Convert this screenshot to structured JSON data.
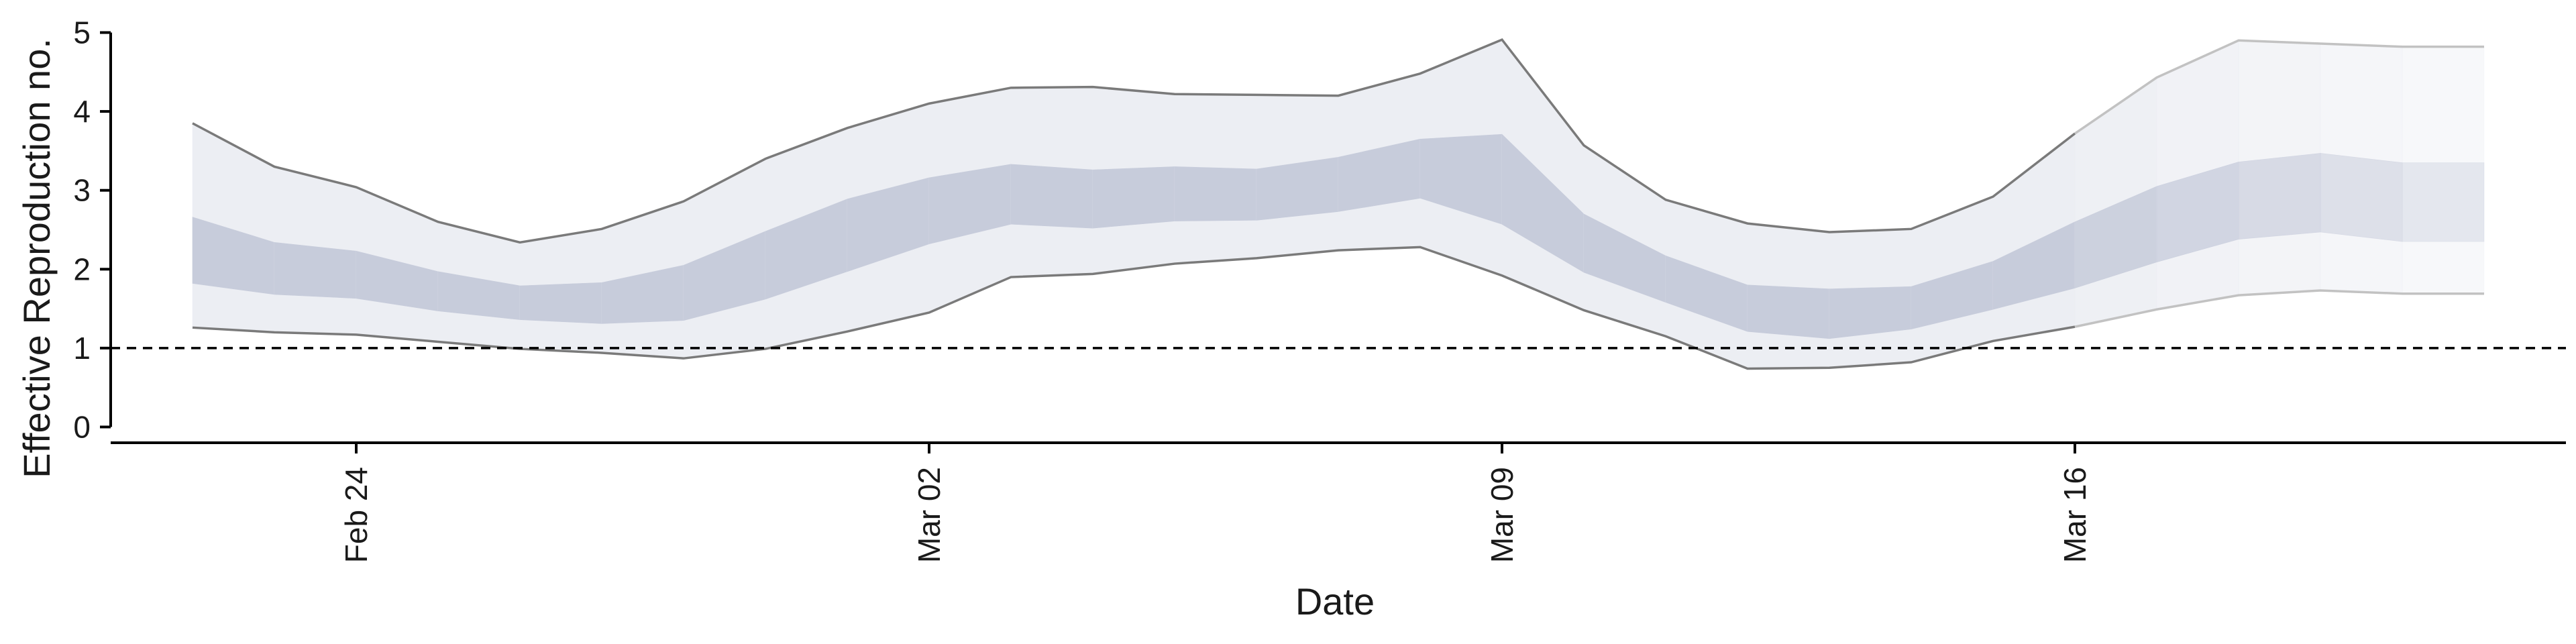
{
  "chart_data": {
    "type": "area",
    "title": "",
    "xlabel": "Date",
    "ylabel": "Effective Reproduction no.",
    "x_ticks": [
      "Feb 24",
      "Mar 02",
      "Mar 09",
      "Mar 16"
    ],
    "y_ticks": [
      0,
      1,
      2,
      3,
      4,
      5
    ],
    "ylim": [
      -0.2,
      5.2
    ],
    "xlim": [
      "2020-02-21",
      "2020-03-22"
    ],
    "reference_line": 1,
    "grid": false,
    "legend": "none",
    "colors": {
      "outer_band": "#eceef3",
      "inner_band": "#c7ccdb",
      "bound_line": "#7a7a7a",
      "forecast_bound_line": "#c2c2c2",
      "reference_line": "#000000"
    },
    "series": {
      "dates": [
        "2020-02-22",
        "2020-02-23",
        "2020-02-24",
        "2020-02-25",
        "2020-02-26",
        "2020-02-27",
        "2020-02-28",
        "2020-02-29",
        "2020-03-01",
        "2020-03-02",
        "2020-03-03",
        "2020-03-04",
        "2020-03-05",
        "2020-03-06",
        "2020-03-07",
        "2020-03-08",
        "2020-03-09",
        "2020-03-10",
        "2020-03-11",
        "2020-03-12",
        "2020-03-13",
        "2020-03-14",
        "2020-03-15",
        "2020-03-16",
        "2020-03-17",
        "2020-03-18",
        "2020-03-19",
        "2020-03-20",
        "2020-03-21"
      ],
      "upper_90": [
        3.85,
        3.3,
        3.04,
        2.6,
        2.34,
        2.51,
        2.86,
        3.4,
        3.79,
        4.1,
        4.3,
        4.31,
        4.22,
        4.21,
        4.2,
        4.48,
        4.91,
        3.57,
        2.88,
        2.58,
        2.47,
        2.51,
        2.92,
        3.72,
        4.43,
        4.9,
        4.86,
        4.82,
        4.82
      ],
      "upper_50": [
        2.66,
        2.34,
        2.23,
        1.97,
        1.79,
        1.83,
        2.05,
        2.48,
        2.89,
        3.16,
        3.33,
        3.26,
        3.3,
        3.27,
        3.42,
        3.65,
        3.71,
        2.7,
        2.17,
        1.8,
        1.75,
        1.78,
        2.1,
        2.6,
        3.05,
        3.36,
        3.47,
        3.35,
        3.35
      ],
      "lower_50": [
        1.82,
        1.68,
        1.63,
        1.47,
        1.36,
        1.31,
        1.35,
        1.62,
        1.97,
        2.32,
        2.57,
        2.52,
        2.61,
        2.62,
        2.73,
        2.9,
        2.57,
        1.96,
        1.58,
        1.21,
        1.12,
        1.24,
        1.49,
        1.76,
        2.09,
        2.38,
        2.47,
        2.35,
        2.35
      ],
      "lower_90": [
        1.26,
        1.2,
        1.17,
        1.08,
        0.99,
        0.94,
        0.87,
        0.99,
        1.21,
        1.45,
        1.9,
        1.94,
        2.07,
        2.14,
        2.24,
        2.28,
        1.92,
        1.48,
        1.15,
        0.74,
        0.75,
        0.82,
        1.09,
        1.27,
        1.49,
        1.67,
        1.73,
        1.69,
        1.69
      ],
      "forecast_start": "2020-03-16"
    }
  }
}
